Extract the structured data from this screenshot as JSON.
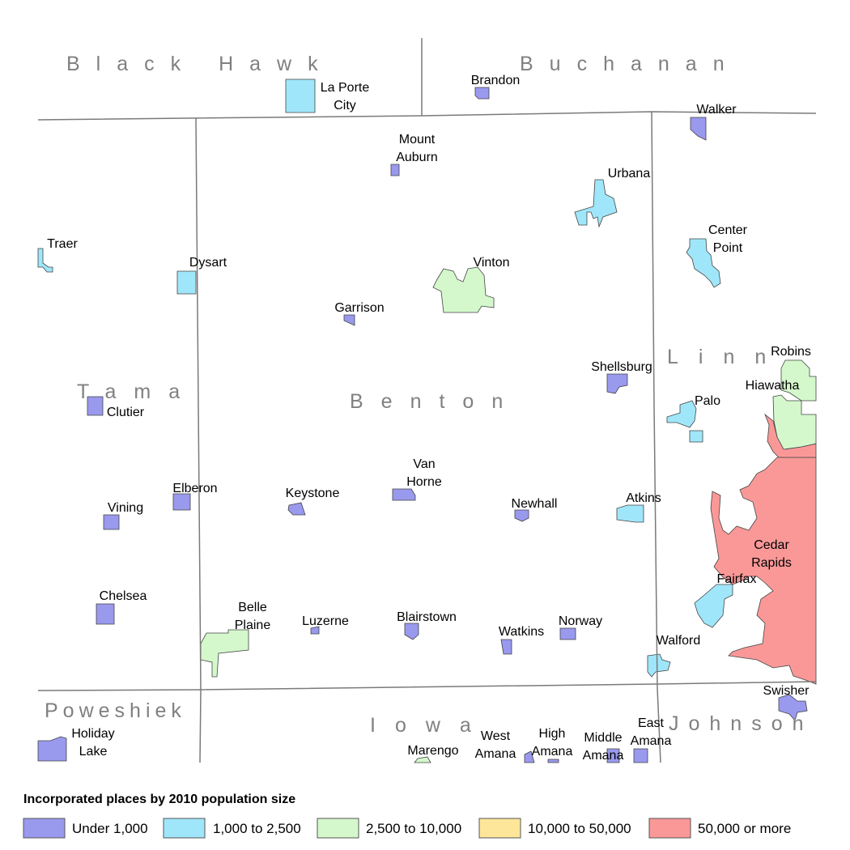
{
  "colors": {
    "under_1000": "#9999ee",
    "1000_2500": "#a0e6fa",
    "2500_10000": "#d4f8cc",
    "10000_50000": "#fde69a",
    "50000_plus": "#fa9898"
  },
  "counties": {
    "black_hawk": "Black Hawk",
    "buchanan": "Buchanan",
    "tama": "Tama",
    "benton": "Benton",
    "linn": "Linn",
    "poweshiek": "Poweshiek",
    "iowa": "Iowa",
    "johnson": "Johnson"
  },
  "places": {
    "la_porte_city": [
      "La Porte",
      "City"
    ],
    "brandon": "Brandon",
    "walker": "Walker",
    "mount_auburn": [
      "Mount",
      "Auburn"
    ],
    "urbana": "Urbana",
    "traer": "Traer",
    "dysart": "Dysart",
    "vinton": "Vinton",
    "center_point": [
      "Center",
      "Point"
    ],
    "garrison": "Garrison",
    "robins": "Robins",
    "shellsburg": "Shellsburg",
    "hiawatha": "Hiawatha",
    "clutier": "Clutier",
    "palo": "Palo",
    "van_horne": [
      "Van",
      "Horne"
    ],
    "elberon": "Elberon",
    "keystone": "Keystone",
    "atkins": "Atkins",
    "newhall": "Newhall",
    "vining": "Vining",
    "cedar_rapids": [
      "Cedar",
      "Rapids"
    ],
    "fairfax": "Fairfax",
    "chelsea": "Chelsea",
    "belle_plaine": [
      "Belle",
      "Plaine"
    ],
    "luzerne": "Luzerne",
    "blairstown": "Blairstown",
    "norway": "Norway",
    "watkins": "Watkins",
    "walford": "Walford",
    "swisher": "Swisher",
    "holiday_lake": [
      "Holiday",
      "Lake"
    ],
    "west_amana": [
      "West",
      "Amana"
    ],
    "high_amana": [
      "High",
      "Amana"
    ],
    "middle_amana": [
      "Middle",
      "Amana"
    ],
    "east_amana": [
      "East",
      "Amana"
    ],
    "marengo": "Marengo"
  },
  "legend": {
    "title": "Incorporated places by 2010 population size",
    "items": [
      {
        "label": "Under 1,000",
        "color": "#9999ee"
      },
      {
        "label": "1,000 to 2,500",
        "color": "#a0e6fa"
      },
      {
        "label": "2,500 to 10,000",
        "color": "#d4f8cc"
      },
      {
        "label": "10,000 to 50,000",
        "color": "#fde69a"
      },
      {
        "label": "50,000 or more",
        "color": "#fa9898"
      }
    ]
  }
}
